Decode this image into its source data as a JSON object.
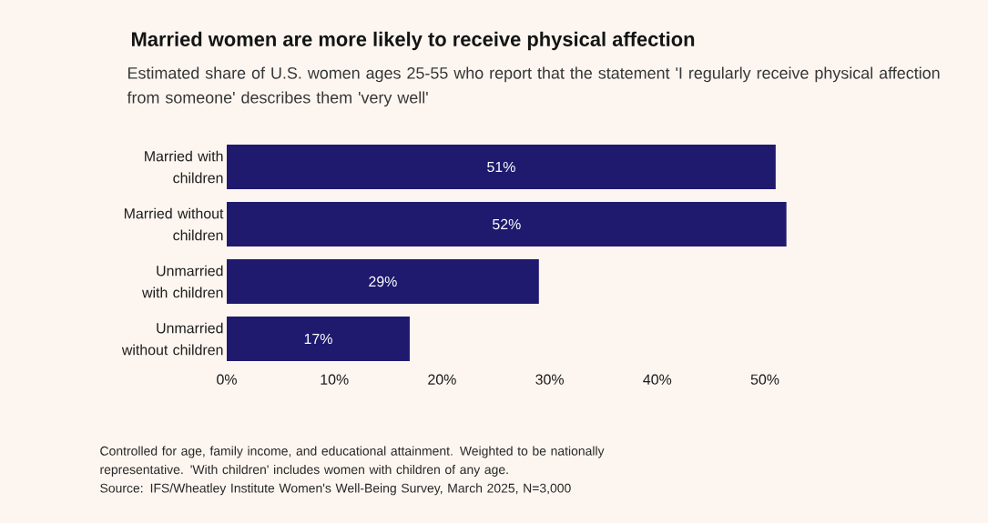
{
  "chart_data": {
    "type": "bar",
    "orientation": "horizontal",
    "title": "Married women are more likely to receive physical affection",
    "subtitle": "Estimated share of U.S. women ages 25-55 who report that the statement 'I regularly receive physical affection from someone' describes them 'very well'",
    "categories": [
      "Married with children",
      "Married without children",
      "Unmarried with children",
      "Unmarried without children"
    ],
    "values": [
      51,
      52,
      29,
      17
    ],
    "value_labels": [
      "51%",
      "52%",
      "29%",
      "17%"
    ],
    "color": "#1f1a6e",
    "xlim": [
      0,
      52.2
    ],
    "xticks": [
      {
        "value": 0,
        "label": "0%"
      },
      {
        "value": 10,
        "label": "10%"
      },
      {
        "value": 20,
        "label": "20%"
      },
      {
        "value": 30,
        "label": "30%"
      },
      {
        "value": 40,
        "label": "40%"
      },
      {
        "value": 50,
        "label": "50%"
      }
    ],
    "annotations": [
      "Controlled for age, family income, and educational attainment. Weighted to be nationally representative. 'With children' includes women with children of any age.",
      "Source: IFS/Wheatley Institute Women's Well-Being Survey, March 2025, N=3,000"
    ]
  }
}
